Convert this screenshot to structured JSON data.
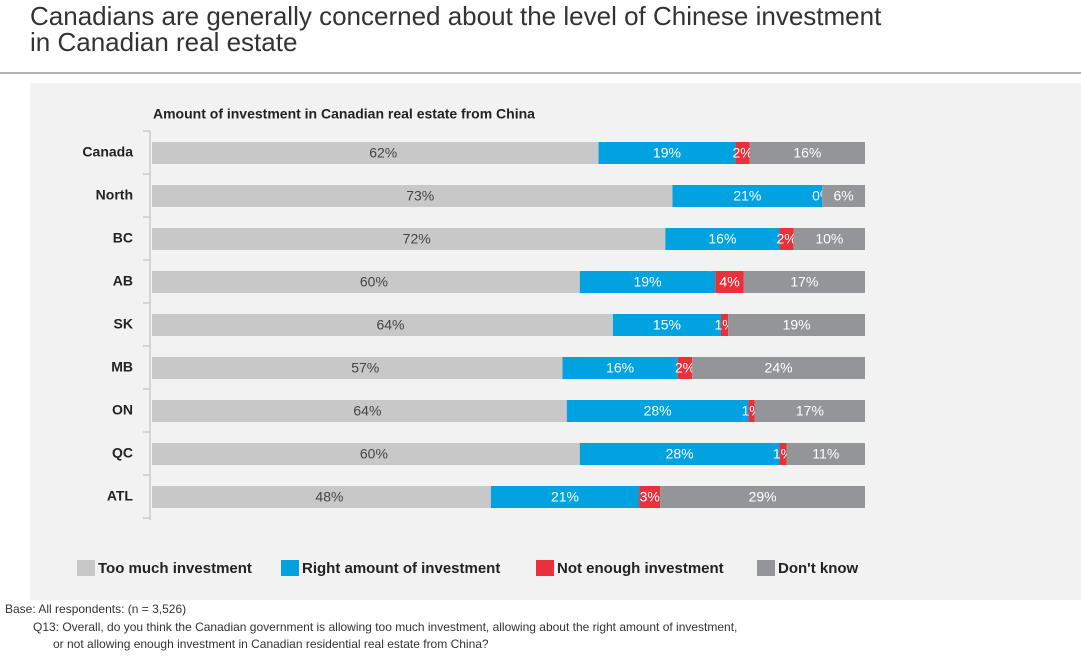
{
  "chart_data": {
    "type": "stacked-bar-100",
    "title": [
      "Canadians are generally concerned about the level of Chinese investment",
      "in Canadian real estate"
    ],
    "subtitle": "Amount of investment in Canadian real estate from China",
    "categories": [
      "Canada",
      "North",
      "BC",
      "AB",
      "SK",
      "MB",
      "ON",
      "QC",
      "ATL"
    ],
    "series": [
      {
        "name": "Too much investment",
        "color": "#c8c8c9",
        "label_color": "#444444",
        "values": [
          62,
          73,
          72,
          60,
          64,
          57,
          64,
          60,
          48
        ],
        "value_labels": [
          "62%",
          "73%",
          "72%",
          "60%",
          "64%",
          "57%",
          "64%",
          "60%",
          "48%"
        ]
      },
      {
        "name": "Right amount of investment",
        "color": "#00a3e0",
        "label_color": "#ffffff",
        "values": [
          19,
          21,
          16,
          19,
          15,
          16,
          28,
          28,
          21
        ],
        "value_labels": [
          "19%",
          "21%",
          "16%",
          "19%",
          "15%",
          "16%",
          "28%",
          "28%",
          "21%"
        ]
      },
      {
        "name": "Not enough investment",
        "color": "#e8313a",
        "label_color": "#ffffff",
        "values": [
          2,
          0,
          2,
          4,
          1,
          2,
          1,
          1,
          3
        ],
        "value_labels": [
          "2%",
          "0%",
          "2%",
          "4%",
          "1%",
          "2%",
          "1%",
          "1%",
          "3%"
        ]
      },
      {
        "name": "Don't know",
        "color": "#939598",
        "label_color": "#ffffff",
        "values": [
          16,
          6,
          10,
          17,
          19,
          24,
          17,
          11,
          29
        ],
        "value_labels": [
          "16%",
          "6%",
          "10%",
          "17%",
          "19%",
          "24%",
          "17%",
          "11%",
          "29%"
        ]
      }
    ],
    "notes": [
      "Base: All respondents: (n = 3,526)",
      "Q13: Overall, do you think the Canadian government is allowing too much investment, allowing about the right amount of investment,",
      "or not allowing enough investment in Canadian residential real estate from China?"
    ]
  }
}
